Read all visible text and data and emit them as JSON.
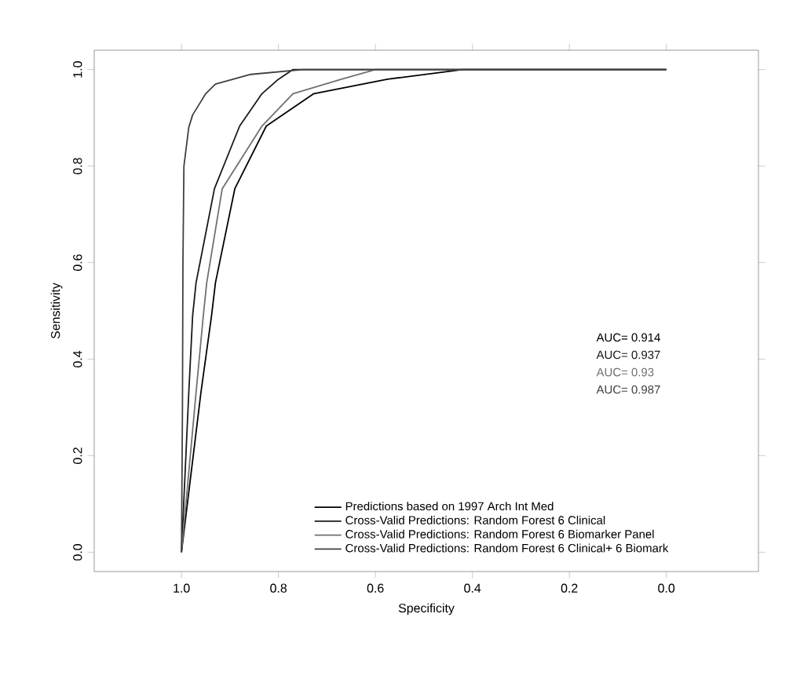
{
  "chart_data": {
    "type": "line",
    "xlabel": "Specificity",
    "ylabel": "Sensitivity",
    "xlim": [
      1.18,
      -0.19
    ],
    "ylim": [
      -0.04,
      1.04
    ],
    "xticks": [
      {
        "value": 1,
        "label": "1.0"
      },
      {
        "value": 0.8,
        "label": "0.8"
      },
      {
        "value": 0.6,
        "label": "0.6"
      },
      {
        "value": 0.4,
        "label": "0.4"
      },
      {
        "value": 0.2,
        "label": "0.2"
      },
      {
        "value": 0,
        "label": "0.0"
      }
    ],
    "yticks": [
      {
        "value": 0,
        "label": "0.0"
      },
      {
        "value": 0.2,
        "label": "0.2"
      },
      {
        "value": 0.4,
        "label": "0.4"
      },
      {
        "value": 0.6,
        "label": "0.6"
      },
      {
        "value": 0.8,
        "label": "0.8"
      },
      {
        "value": 1,
        "label": "1.0"
      }
    ],
    "grid": false,
    "legend": "bottom",
    "marker": "none",
    "line_style": "solid",
    "annotations": [
      "AUC= 0.914",
      "AUC= 0.937",
      "AUC= 0.93",
      "AUC= 0.987"
    ],
    "series": [
      {
        "name": "Predictions based on 1997 Arch Int Med",
        "color": "#000000",
        "x": [
          1,
          0.96,
          0.938,
          0.93,
          0.89,
          0.825,
          0.727,
          0.575,
          0.42,
          0
        ],
        "values": [
          0,
          0.33,
          0.49,
          0.558,
          0.753,
          0.883,
          0.95,
          0.98,
          1,
          1
        ]
      },
      {
        "name": "Cross-Valid Predictions: Random Forest 6 Clinical",
        "color": "#1a1a1a",
        "x": [
          1,
          0.985,
          0.977,
          0.97,
          0.932,
          0.88,
          0.834,
          0.8,
          0.77,
          0
        ],
        "values": [
          0,
          0.33,
          0.49,
          0.558,
          0.753,
          0.883,
          0.95,
          0.98,
          1,
          1
        ]
      },
      {
        "name": "Cross-Valid Predictions: Random Forest 6 Biomarker Panel",
        "color": "#707070",
        "x": [
          1,
          0.97,
          0.955,
          0.948,
          0.916,
          0.834,
          0.77,
          0.67,
          0.6,
          0
        ],
        "values": [
          0,
          0.33,
          0.49,
          0.558,
          0.753,
          0.883,
          0.95,
          0.98,
          1,
          1
        ]
      },
      {
        "name": "Cross-Valid Predictions: Random Forest 6 Clinical+ 6 Biomark",
        "color": "#404040",
        "x": [
          1,
          0.998,
          0.997,
          0.995,
          0.985,
          0.977,
          0.95,
          0.93,
          0.857,
          0.75,
          0
        ],
        "values": [
          0,
          0.3,
          0.6,
          0.8,
          0.88,
          0.906,
          0.95,
          0.97,
          0.99,
          1,
          1
        ]
      }
    ]
  }
}
